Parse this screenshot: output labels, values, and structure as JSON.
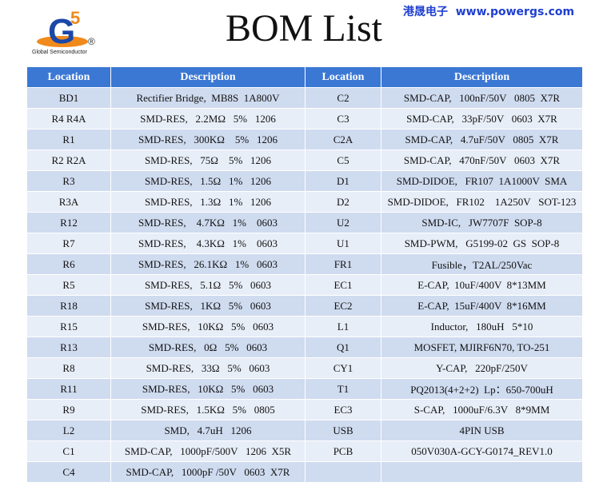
{
  "header": {
    "title": "BOM List",
    "site": "港晟电子  www.powergs.com",
    "logo_mark": "G",
    "logo_superscript": "5",
    "logo_registered": "®",
    "logo_caption": "Global Semiconductor"
  },
  "table": {
    "columns": [
      "Location",
      "Description",
      "Location",
      "Description"
    ],
    "rows": [
      [
        "BD1",
        "Rectifier Bridge,  MB8S  1A800V",
        "C2",
        "SMD-CAP,   100nF/50V   0805  X7R"
      ],
      [
        "R4 R4A",
        "SMD-RES,   2.2MΩ   5%   1206",
        "C3",
        "SMD-CAP,   33pF/50V   0603  X7R"
      ],
      [
        "R1",
        "SMD-RES,   300KΩ    5%   1206",
        "C2A",
        "SMD-CAP,   4.7uF/50V   0805  X7R"
      ],
      [
        "R2 R2A",
        "SMD-RES,   75Ω    5%   1206",
        "C5",
        "SMD-CAP,   470nF/50V   0603  X7R"
      ],
      [
        "R3",
        "SMD-RES,   1.5Ω   1%   1206",
        "D1",
        "SMD-DIDOE,   FR107  1A1000V  SMA"
      ],
      [
        "R3A",
        "SMD-RES,   1.3Ω   1%   1206",
        "D2",
        "SMD-DIDOE,   FR102    1A250V   SOT-123"
      ],
      [
        "R12",
        "SMD-RES,    4.7KΩ   1%    0603",
        "U2",
        "SMD-IC,   JW7707F  SOP-8"
      ],
      [
        "R7",
        "SMD-RES,    4.3KΩ   1%    0603",
        "U1",
        "SMD-PWM,   G5199-02  GS  SOP-8"
      ],
      [
        "R6",
        "SMD-RES,   26.1KΩ   1%   0603",
        "FR1",
        "Fusible，T2AL/250Vac"
      ],
      [
        "R5",
        "SMD-RES,   5.1Ω   5%   0603",
        "EC1",
        "E-CAP,  10uF/400V  8*13MM"
      ],
      [
        "R18",
        "SMD-RES,   1KΩ   5%   0603",
        "EC2",
        "E-CAP,  15uF/400V  8*16MM"
      ],
      [
        "R15",
        "SMD-RES,   10KΩ   5%   0603",
        "L1",
        "Inductor,   180uH   5*10"
      ],
      [
        "R13",
        "SMD-RES,   0Ω   5%   0603",
        "Q1",
        "MOSFET, MJIRF6N70, TO-251"
      ],
      [
        "R8",
        "SMD-RES,   33Ω   5%   0603",
        "CY1",
        "Y-CAP,   220pF/250V"
      ],
      [
        "R11",
        "SMD-RES,   10KΩ   5%   0603",
        "T1",
        "PQ2013(4+2+2)  Lp：650-700uH"
      ],
      [
        "R9",
        "SMD-RES,   1.5KΩ   5%   0805",
        "EC3",
        "S-CAP,   1000uF/6.3V   8*9MM"
      ],
      [
        "L2",
        "SMD,   4.7uH   1206",
        "USB",
        "4PIN USB"
      ],
      [
        "C1",
        "SMD-CAP,   1000pF/500V   1206  X5R",
        "PCB",
        "050V030A-GCY-G0174_REV1.0"
      ],
      [
        "C4",
        "SMD-CAP,   1000pF /50V   0603  X7R"
      ]
    ]
  }
}
